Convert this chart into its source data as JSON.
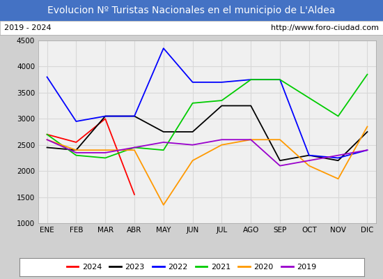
{
  "title": "Evolucion Nº Turistas Nacionales en el municipio de L'Aldea",
  "subtitle_left": "2019 - 2024",
  "subtitle_right": "http://www.foro-ciudad.com",
  "months": [
    "ENE",
    "FEB",
    "MAR",
    "ABR",
    "MAY",
    "JUN",
    "JUL",
    "AGO",
    "SEP",
    "OCT",
    "NOV",
    "DIC"
  ],
  "ylim": [
    1000,
    4500
  ],
  "yticks": [
    1000,
    1500,
    2000,
    2500,
    3000,
    3500,
    4000,
    4500
  ],
  "series": {
    "2024": {
      "color": "#ff0000",
      "data": [
        2700,
        2550,
        3000,
        1550,
        null,
        null,
        null,
        null,
        null,
        null,
        null,
        null
      ]
    },
    "2023": {
      "color": "#000000",
      "data": [
        2450,
        2400,
        3050,
        3050,
        2750,
        2750,
        3250,
        3250,
        2200,
        2300,
        2200,
        2750
      ]
    },
    "2022": {
      "color": "#0000ff",
      "data": [
        3800,
        2950,
        3050,
        3050,
        4350,
        3700,
        3700,
        3750,
        3750,
        2300,
        2250,
        2400
      ]
    },
    "2021": {
      "color": "#00cc00",
      "data": [
        2700,
        2300,
        2250,
        2450,
        2400,
        3300,
        3350,
        3750,
        3750,
        3400,
        3050,
        3850
      ]
    },
    "2020": {
      "color": "#ff9900",
      "data": [
        2600,
        2400,
        2400,
        2400,
        1350,
        2200,
        2500,
        2600,
        2600,
        2100,
        1850,
        2850
      ]
    },
    "2019": {
      "color": "#9900cc",
      "data": [
        2600,
        2350,
        2350,
        2450,
        2550,
        2500,
        2600,
        2600,
        2100,
        2200,
        2300,
        2400
      ]
    }
  },
  "legend_order": [
    "2024",
    "2023",
    "2022",
    "2021",
    "2020",
    "2019"
  ],
  "title_bg_color": "#4472c4",
  "title_text_color": "#ffffff",
  "plot_bg_color": "#f0f0f0",
  "grid_color": "#d8d8d8",
  "subtitle_bg_color": "#ffffff",
  "outer_bg_color": "#d0d0d0",
  "title_fontsize": 10,
  "subtitle_fontsize": 8,
  "tick_fontsize": 7.5
}
